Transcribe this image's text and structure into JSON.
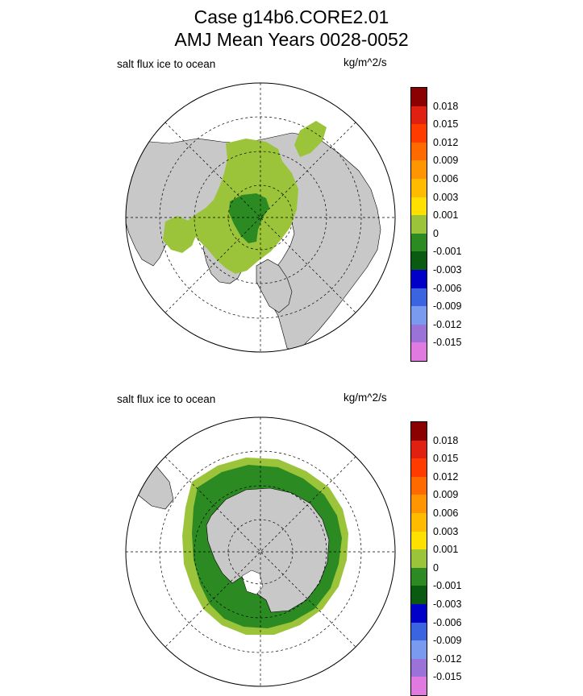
{
  "title_line1": "Case g14b6.CORE2.01",
  "title_line2": "AMJ Mean   Years 0028-0052",
  "chart_data": [
    {
      "type": "heatmap",
      "projection": "polar-stereographic",
      "hemisphere": "north",
      "field_label": "salt flux ice to ocean",
      "units": "kg/m^2/s",
      "levels": [
        "0.018",
        "0.015",
        "0.012",
        "0.009",
        "0.006",
        "0.003",
        "0.001",
        "0",
        "-0.001",
        "-0.003",
        "-0.006",
        "-0.009",
        "-0.012",
        "-0.015"
      ],
      "colors": [
        "#8b0000",
        "#e02010",
        "#ff3b00",
        "#ff6a00",
        "#ff9500",
        "#ffbb00",
        "#ffe000",
        "#9bc43a",
        "#2b8b22",
        "#0a5a12",
        "#0000c8",
        "#3a64e0",
        "#7a9af0",
        "#9a72d8",
        "#e07ae0"
      ]
    },
    {
      "type": "heatmap",
      "projection": "polar-stereographic",
      "hemisphere": "south",
      "field_label": "salt flux ice to ocean",
      "units": "kg/m^2/s",
      "levels": [
        "0.018",
        "0.015",
        "0.012",
        "0.009",
        "0.006",
        "0.003",
        "0.001",
        "0",
        "-0.001",
        "-0.003",
        "-0.006",
        "-0.009",
        "-0.012",
        "-0.015"
      ],
      "colors": [
        "#8b0000",
        "#e02010",
        "#ff3b00",
        "#ff6a00",
        "#ff9500",
        "#ffbb00",
        "#ffe000",
        "#9bc43a",
        "#2b8b22",
        "#0a5a12",
        "#0000c8",
        "#3a64e0",
        "#7a9af0",
        "#9a72d8",
        "#e07ae0"
      ]
    }
  ]
}
